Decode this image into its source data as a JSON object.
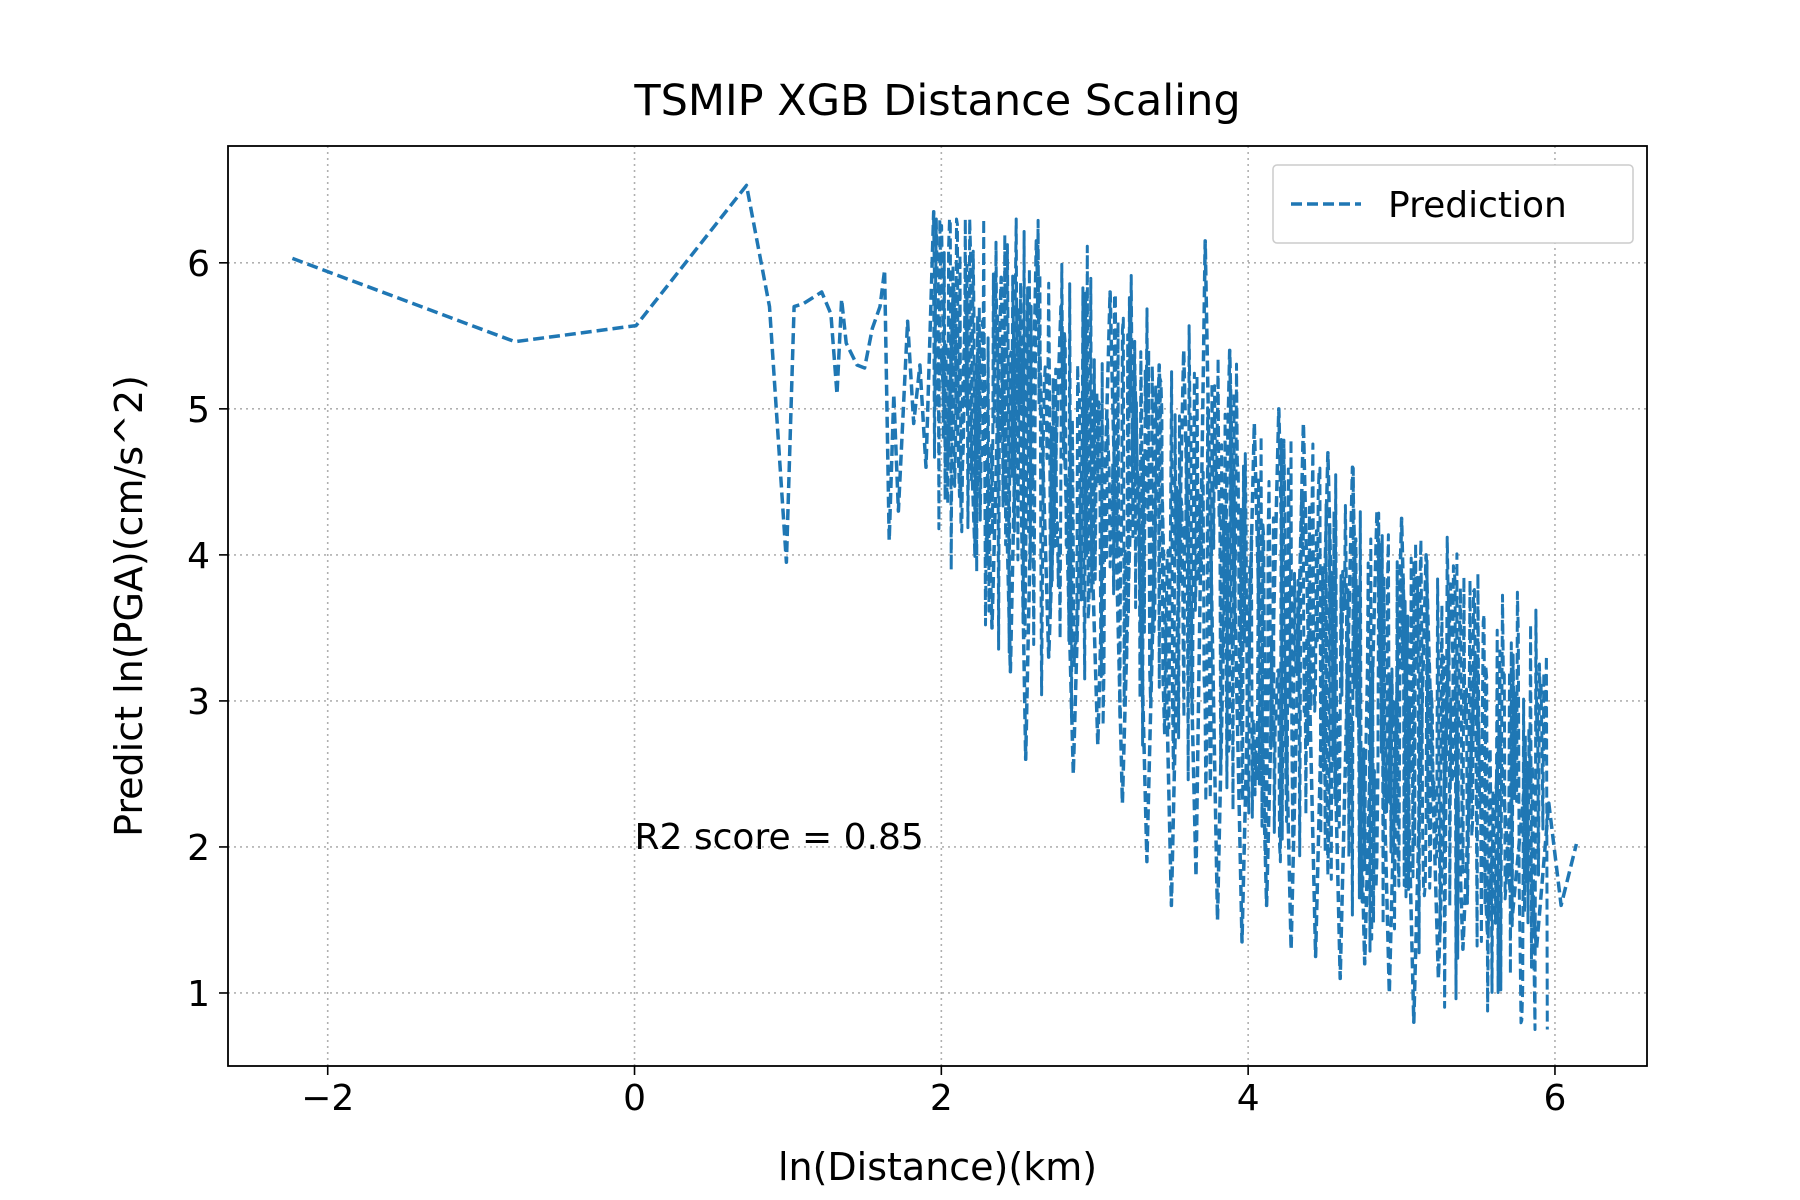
{
  "chart_data": {
    "type": "line",
    "title": "TSMIP XGB Distance Scaling",
    "xlabel": "ln(Distance)(km)",
    "ylabel": "Predict ln(PGA)(cm/s^2)",
    "xlim": [
      -2.65,
      6.6
    ],
    "ylim": [
      0.5,
      6.8
    ],
    "xticks": [
      -2,
      0,
      2,
      4,
      6
    ],
    "xtick_labels": [
      "−2",
      "0",
      "2",
      "4",
      "6"
    ],
    "yticks": [
      1,
      2,
      3,
      4,
      5,
      6
    ],
    "ytick_labels": [
      "1",
      "2",
      "3",
      "4",
      "5",
      "6"
    ],
    "grid": true,
    "grid_style": "dotted",
    "legend_position": "top-right",
    "annotation": {
      "text": "R2 score = 0.85",
      "x": 0.0,
      "y": 2.0
    },
    "series": [
      {
        "name": "Prediction",
        "color": "#1f77b4",
        "linestyle": "dashed",
        "x": [
          -2.23,
          -0.78,
          0.01,
          0.73,
          0.88,
          0.99,
          1.04,
          1.1,
          1.22,
          1.28,
          1.32,
          1.35,
          1.38,
          1.45,
          1.5,
          1.55,
          1.6,
          1.63,
          1.66,
          1.69,
          1.72,
          1.78,
          1.82,
          1.86,
          1.9,
          1.95,
          1.97,
          2.0,
          2.04,
          2.08,
          2.12,
          2.16,
          2.22,
          2.27,
          2.33,
          2.39,
          2.45,
          2.5,
          2.55,
          2.62,
          2.7,
          2.78,
          2.86,
          2.94,
          3.02,
          3.1,
          3.18,
          3.26,
          3.34,
          3.42,
          3.5,
          3.58,
          3.66,
          3.72,
          3.8,
          3.88,
          3.96,
          4.04,
          4.12,
          4.2,
          4.28,
          4.36,
          4.44,
          4.52,
          4.6,
          4.68,
          4.76,
          4.84,
          4.92,
          5.0,
          5.08,
          5.16,
          5.24,
          5.32,
          5.4,
          5.48,
          5.56,
          5.64,
          5.72,
          5.8,
          5.88,
          5.96,
          6.04,
          6.14
        ],
        "y": [
          6.03,
          5.46,
          5.57,
          6.53,
          5.7,
          3.95,
          5.7,
          5.72,
          5.8,
          5.65,
          5.1,
          5.75,
          5.45,
          5.3,
          5.28,
          5.55,
          5.7,
          5.95,
          4.1,
          5.1,
          4.3,
          5.6,
          4.9,
          5.3,
          4.6,
          6.35,
          5.0,
          5.4,
          4.6,
          5.85,
          4.4,
          5.8,
          4.0,
          5.6,
          3.5,
          5.9,
          3.2,
          5.7,
          2.6,
          6.15,
          3.3,
          5.7,
          2.5,
          5.5,
          2.7,
          5.8,
          2.3,
          5.3,
          1.9,
          5.3,
          1.6,
          5.4,
          1.8,
          6.15,
          1.5,
          5.4,
          1.35,
          4.9,
          1.6,
          5.0,
          1.3,
          4.9,
          1.25,
          4.7,
          1.1,
          4.6,
          1.2,
          4.3,
          1.0,
          4.25,
          0.8,
          4.0,
          1.1,
          3.8,
          1.3,
          3.3,
          1.4,
          2.8,
          1.5,
          2.4,
          1.3,
          2.3,
          1.6,
          2.02
        ]
      }
    ]
  }
}
